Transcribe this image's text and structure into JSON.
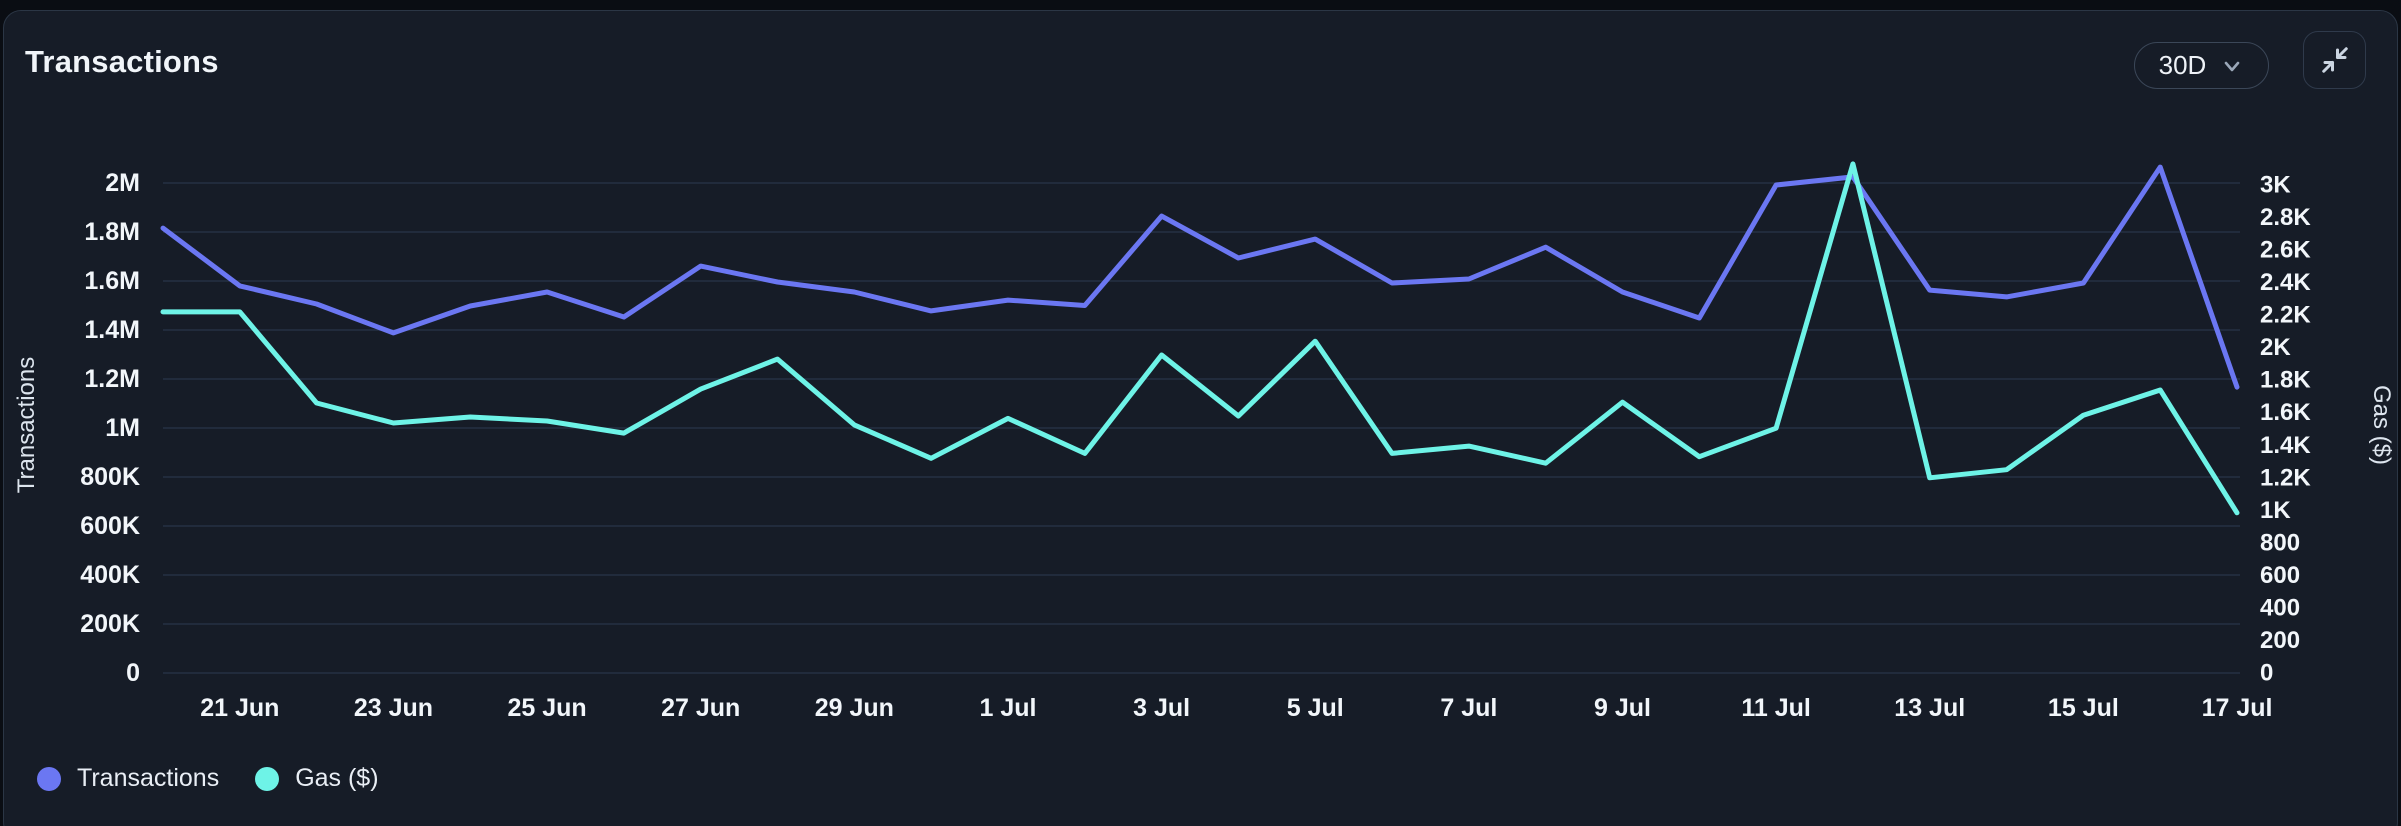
{
  "card": {
    "title": "Transactions",
    "range_selector": {
      "value": "30D"
    },
    "expand_button": {
      "icon": "collapse-arrows-icon"
    }
  },
  "chart_data": {
    "type": "line",
    "title": "Transactions",
    "x": [
      "20 Jun",
      "21 Jun",
      "22 Jun",
      "23 Jun",
      "24 Jun",
      "25 Jun",
      "26 Jun",
      "27 Jun",
      "28 Jun",
      "29 Jun",
      "30 Jun",
      "1 Jul",
      "2 Jul",
      "3 Jul",
      "4 Jul",
      "5 Jul",
      "6 Jul",
      "7 Jul",
      "8 Jul",
      "9 Jul",
      "10 Jul",
      "11 Jul",
      "12 Jul",
      "13 Jul",
      "14 Jul",
      "15 Jul",
      "16 Jul",
      "17 Jul"
    ],
    "x_tick_labels": [
      "21 Jun",
      "23 Jun",
      "25 Jun",
      "27 Jun",
      "29 Jun",
      "1 Jul",
      "3 Jul",
      "5 Jul",
      "7 Jul",
      "9 Jul",
      "11 Jul",
      "13 Jul",
      "15 Jul",
      "17 Jul"
    ],
    "series": [
      {
        "name": "Transactions",
        "axis": "left",
        "color": "#6b77f2",
        "values": [
          1816000,
          1580000,
          1506000,
          1388000,
          1498000,
          1555000,
          1453000,
          1661000,
          1596000,
          1555000,
          1478000,
          1522000,
          1500000,
          1865000,
          1694000,
          1771000,
          1592000,
          1608000,
          1738000,
          1555000,
          1449000,
          1992000,
          2025000,
          1563000,
          1535000,
          1592000,
          2065000,
          1167000
        ]
      },
      {
        "name": "Gas ($)",
        "axis": "right",
        "color": "#6ef3e7",
        "values": [
          2220,
          2220,
          1660,
          1537,
          1574,
          1549,
          1475,
          1745,
          1930,
          1525,
          1320,
          1565,
          1350,
          1955,
          1580,
          2040,
          1350,
          1395,
          1290,
          1665,
          1330,
          1505,
          3130,
          1200,
          1250,
          1585,
          1740,
          985
        ]
      }
    ],
    "left_axis": {
      "title": "Transactions",
      "min": 0,
      "max": 2000000,
      "ticks": [
        "0",
        "200K",
        "400K",
        "600K",
        "800K",
        "1M",
        "1.2M",
        "1.4M",
        "1.6M",
        "1.8M",
        "2M"
      ]
    },
    "right_axis": {
      "title": "Gas ($)",
      "min": 0,
      "max": 3000,
      "ticks": [
        "0",
        "200",
        "400",
        "600",
        "800",
        "1K",
        "1.2K",
        "1.4K",
        "1.6K",
        "1.8K",
        "2K",
        "2.2K",
        "2.4K",
        "2.6K",
        "2.8K",
        "3K"
      ]
    },
    "legend": [
      {
        "label": "Transactions",
        "color": "#6b77f2"
      },
      {
        "label": "Gas ($)",
        "color": "#6ef3e7"
      }
    ],
    "grid": "horizontal",
    "legend_position": "bottom-left"
  }
}
